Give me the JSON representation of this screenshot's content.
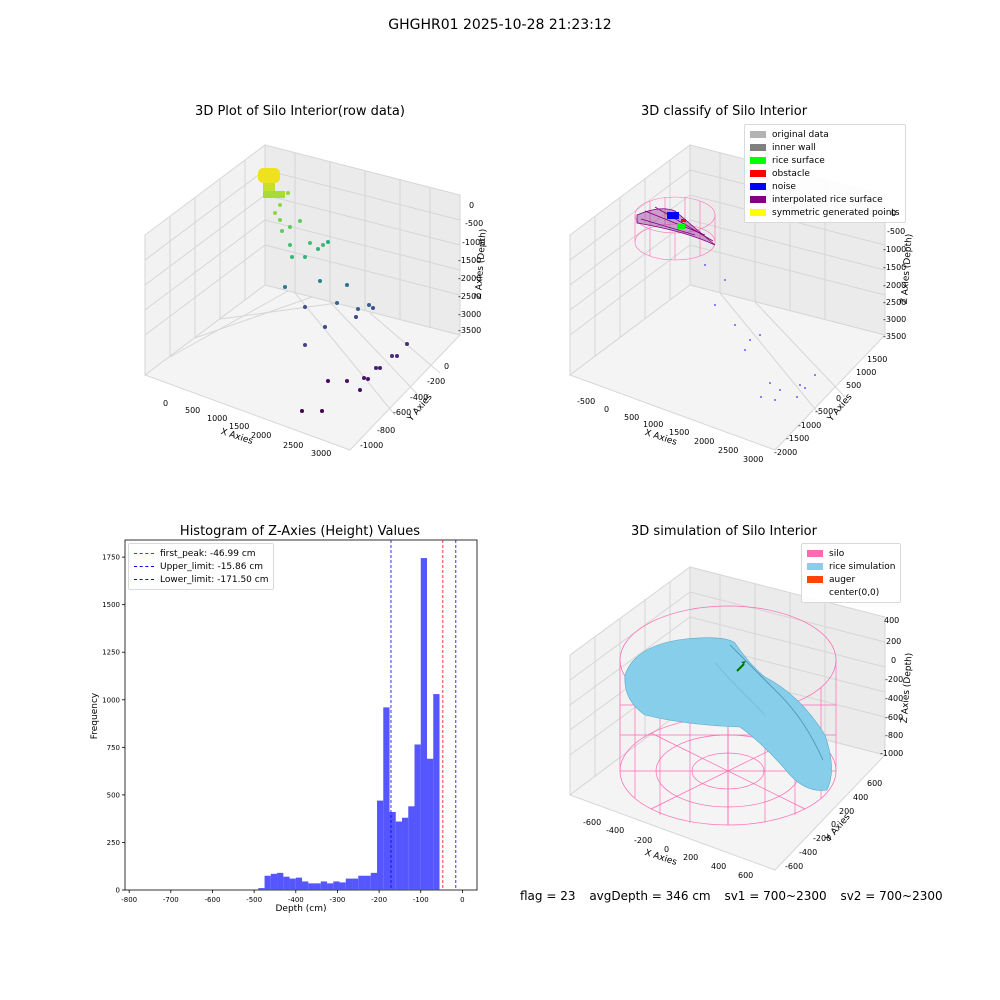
{
  "suptitle": "GHGHR01 2025-10-28 21:23:12",
  "panels": {
    "raw": {
      "title": "3D Plot of Silo Interior(row data)",
      "xlabel": "X Axies",
      "ylabel": "Y Axies",
      "zlabel": "Z Axies (Depth)",
      "xticks": [
        "0",
        "500",
        "1000",
        "1500",
        "2000",
        "2500",
        "3000"
      ],
      "yticks": [
        "0",
        "-200",
        "-400",
        "-600",
        "-800",
        "-1000"
      ],
      "zticks": [
        "0",
        "-500",
        "-1000",
        "-1500",
        "-2000",
        "-2500",
        "-3000",
        "-3500"
      ]
    },
    "classify": {
      "title": "3D classify of Silo Interior",
      "xlabel": "X Axies",
      "ylabel": "Y Axies",
      "zlabel": "Z Axies (Depth)",
      "xticks": [
        "-500",
        "0",
        "500",
        "1000",
        "1500",
        "2000",
        "2500",
        "3000"
      ],
      "yticks": [
        "1500",
        "1000",
        "500",
        "0",
        "-500",
        "-1000",
        "-1500",
        "-2000"
      ],
      "zticks": [
        "0",
        "-500",
        "-1000",
        "-1500",
        "-2000",
        "-2500",
        "-3000",
        "-3500"
      ],
      "legend": [
        {
          "label": "original data",
          "color": "#b3b3b3"
        },
        {
          "label": "inner wall",
          "color": "#808080"
        },
        {
          "label": "rice surface",
          "color": "#00ff00"
        },
        {
          "label": "obstacle",
          "color": "#ff0000"
        },
        {
          "label": "noise",
          "color": "#0000ff"
        },
        {
          "label": "interpolated rice surface",
          "color": "#800080"
        },
        {
          "label": "symmetric generated points",
          "color": "#ffff00"
        }
      ]
    },
    "simulation": {
      "title": "3D simulation of Silo Interior",
      "xlabel": "X Axies",
      "ylabel": "Y Axies",
      "zlabel": "Z Axies (Depth)",
      "xticks": [
        "-600",
        "-400",
        "-200",
        "0",
        "200",
        "400",
        "600"
      ],
      "yticks": [
        "600",
        "400",
        "200",
        "0",
        "-200",
        "-400",
        "-600"
      ],
      "zticks": [
        "400",
        "200",
        "0",
        "-200",
        "-400",
        "-600",
        "-800",
        "-1000"
      ],
      "legend": [
        {
          "label": "silo",
          "color": "#ff69b4"
        },
        {
          "label": "rice simulation",
          "color": "#87ceeb"
        },
        {
          "label": "auger",
          "color": "#ff4500"
        },
        {
          "label": "center(0,0)",
          "color": "#ffffff"
        }
      ]
    }
  },
  "chart_data": {
    "type": "bar",
    "title": "Histogram of Z-Axies (Height) Values",
    "xlabel": "Depth (cm)",
    "ylabel": "Frequency",
    "xlim": [
      -810,
      35
    ],
    "ylim": [
      0,
      1840
    ],
    "xticks": [
      -800,
      -700,
      -600,
      -500,
      -400,
      -300,
      -200,
      -100,
      0
    ],
    "yticks": [
      0,
      250,
      500,
      750,
      1000,
      1250,
      1500,
      1750
    ],
    "bin_width": 15.0,
    "bin_start": -490,
    "values": [
      10,
      75,
      85,
      90,
      70,
      60,
      65,
      45,
      35,
      35,
      45,
      35,
      45,
      40,
      60,
      60,
      75,
      75,
      90,
      470,
      960,
      410,
      360,
      380,
      440,
      765,
      1745,
      690,
      1030
    ],
    "bar_color": "#4444ff",
    "legend_position": "top-left",
    "reference_lines": [
      {
        "label": "first_peak: -46.99 cm",
        "value": -46.99,
        "color": "#ff0000"
      },
      {
        "label": "Upper_limit: -15.86 cm",
        "value": -15.86,
        "color": "#0000ff"
      },
      {
        "label": "Lower_limit: -171.50 cm",
        "value": -171.5,
        "color": "#0000ff"
      }
    ]
  },
  "status": {
    "flag": "flag = 23",
    "avg": "avgDepth = 346 cm",
    "sv1": "sv1 = 700~2300",
    "sv2": "sv2 = 700~2300"
  }
}
